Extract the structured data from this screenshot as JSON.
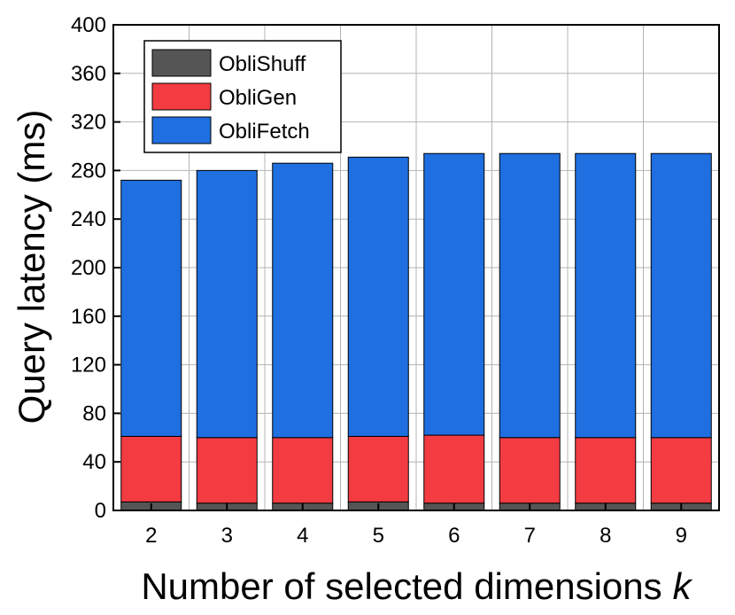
{
  "chart_data": {
    "type": "bar",
    "stacked": true,
    "categories": [
      "2",
      "3",
      "4",
      "5",
      "6",
      "7",
      "8",
      "9"
    ],
    "series": [
      {
        "name": "ObliShuff",
        "color": "#555555",
        "values": [
          7,
          6,
          6,
          7,
          6,
          6,
          6,
          6
        ]
      },
      {
        "name": "ObliGen",
        "color": "#f23c42",
        "values": [
          54,
          54,
          54,
          54,
          56,
          54,
          54,
          54
        ]
      },
      {
        "name": "ObliFetch",
        "color": "#1f6fe0",
        "values": [
          211,
          220,
          226,
          230,
          232,
          234,
          234,
          234
        ]
      }
    ],
    "title": "",
    "xlabel": "Number of  selected dimensions",
    "xlabel_var": "k",
    "ylabel": "Query latency (ms)",
    "ylim": [
      0,
      400
    ],
    "yticks": [
      0,
      40,
      80,
      120,
      160,
      200,
      240,
      280,
      320,
      360,
      400
    ],
    "grid": true,
    "legend_position": "top-left"
  }
}
